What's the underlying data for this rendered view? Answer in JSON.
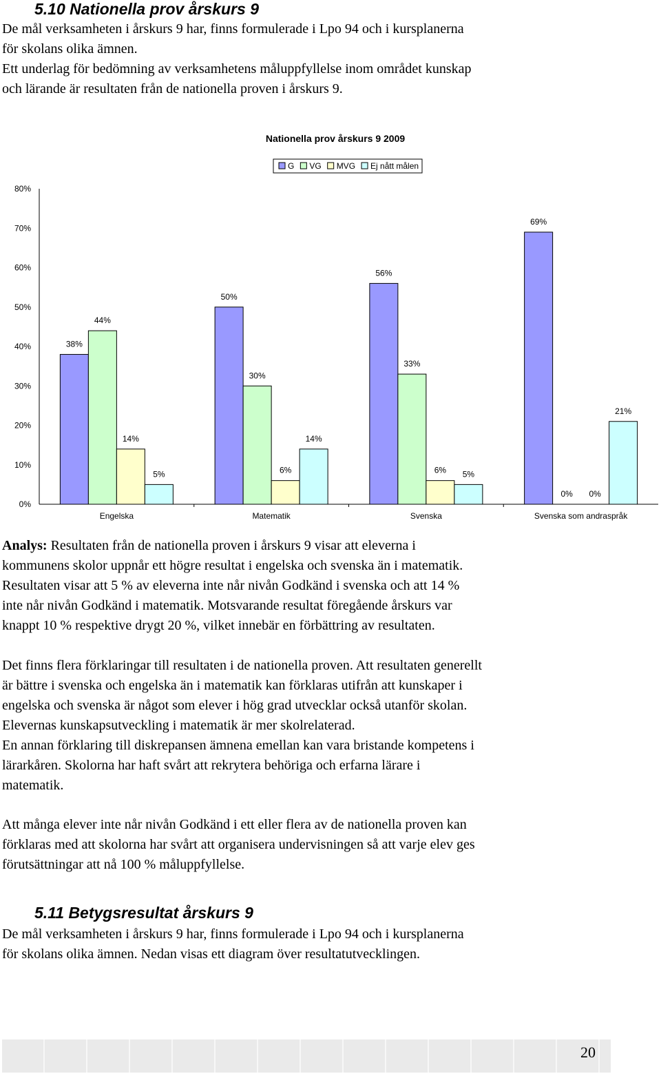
{
  "section1": {
    "heading": "5.10 Nationella prov årskurs 9",
    "intro_lines": [
      "De mål verksamheten i årskurs 9 har, finns formulerade i Lpo 94 och i kursplanerna",
      "för skolans olika ämnen.",
      "Ett underlag för bedömning av verksamhetens måluppfyllelse inom området kunskap",
      "och lärande är resultaten från de nationella proven i årskurs 9."
    ]
  },
  "chart_data": {
    "type": "bar",
    "title": "Nationella prov årskurs 9 2009",
    "categories": [
      "Engelska",
      "Matematik",
      "Svenska",
      "Svenska som andraspråk"
    ],
    "series": [
      {
        "name": "G",
        "values": [
          38,
          50,
          56,
          69
        ],
        "color": "#9999ff"
      },
      {
        "name": "VG",
        "values": [
          44,
          30,
          33,
          0
        ],
        "color": "#ccffcc"
      },
      {
        "name": "MVG",
        "values": [
          14,
          6,
          6,
          0
        ],
        "color": "#ffffcc"
      },
      {
        "name": "Ej nått målen",
        "values": [
          5,
          14,
          5,
          21
        ],
        "color": "#ccffff"
      }
    ],
    "value_labels": [
      [
        "38%",
        "44%",
        "14%",
        "5%"
      ],
      [
        "50%",
        "30%",
        "6%",
        "14%"
      ],
      [
        "56%",
        "33%",
        "6%",
        "5%"
      ],
      [
        "69%",
        "0%",
        "0%",
        "21%"
      ]
    ],
    "ylim": [
      0,
      80
    ],
    "yticks": [
      "0%",
      "10%",
      "20%",
      "30%",
      "40%",
      "50%",
      "60%",
      "70%",
      "80%"
    ],
    "legend_position": "top-center",
    "grid": false
  },
  "analysis": {
    "label": "Analys:",
    "first_line_rest": " Resultaten från de nationella proven i årskurs 9 visar att eleverna i",
    "lines": [
      "kommunens skolor uppnår ett högre resultat i engelska och svenska än i matematik.",
      "Resultaten visar att 5 % av eleverna inte når nivån Godkänd i svenska och att 14 %",
      "inte når nivån Godkänd i matematik. Motsvarande resultat föregående årskurs var",
      "knappt 10 % respektive drygt 20 %, vilket innebär en förbättring av resultaten."
    ]
  },
  "para2": {
    "lines": [
      "Det finns flera förklaringar till resultaten i de nationella proven. Att resultaten generellt",
      "är bättre i svenska och engelska än i matematik kan förklaras utifrån att kunskaper i",
      "engelska och svenska är något som elever i hög grad utvecklar också utanför skolan.",
      "Elevernas kunskapsutveckling i matematik är mer skolrelaterad.",
      "En annan förklaring till diskrepansen ämnena emellan kan vara bristande kompetens i",
      "lärarkåren. Skolorna har haft svårt att rekrytera behöriga och erfarna lärare i",
      "matematik."
    ]
  },
  "para3": {
    "lines": [
      "Att många elever inte når nivån Godkänd i ett eller flera av de nationella proven kan",
      "förklaras med att skolorna har svårt att organisera undervisningen så att varje elev ges",
      "förutsättningar att nå 100 % måluppfyllelse."
    ]
  },
  "section2": {
    "heading": "5.11 Betygsresultat årskurs 9",
    "lines": [
      "De mål verksamheten i årskurs 9 har, finns formulerade i Lpo 94 och i kursplanerna",
      "för skolans olika ämnen. Nedan visas ett diagram över resultatutvecklingen."
    ]
  },
  "footer": {
    "page_number": "20"
  }
}
